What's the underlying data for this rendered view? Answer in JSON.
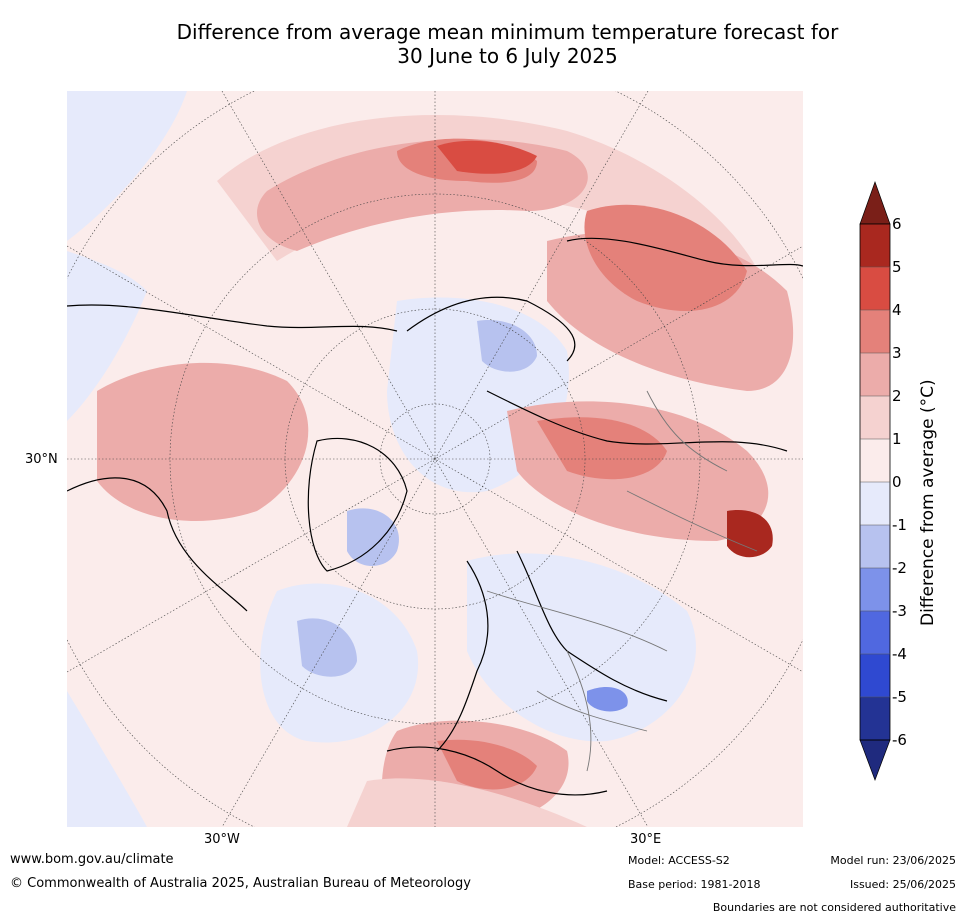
{
  "title_line1": "Difference from average mean minimum temperature forecast for",
  "title_line2": "30 June to 6 July 2025",
  "map": {
    "projection": "north-polar-stereographic",
    "graticule_labels": {
      "lat_left": "30°N",
      "lon_bottom_left": "30°W",
      "lon_bottom_right": "30°E"
    },
    "anomaly_colors": {
      "-6": "#233394",
      "-5": "#2f49d1",
      "-4": "#5068e0",
      "-3": "#7d92ea",
      "-2": "#b7c2ef",
      "-1": "#e6eafb",
      "0": "#fbeceb",
      "1": "#f5d2d0",
      "2": "#ecacaa",
      "3": "#e4817a",
      "4": "#d94c42",
      "5": "#a9281f",
      "6": "#7a1f18"
    }
  },
  "colorbar": {
    "ticks": [
      "6",
      "5",
      "4",
      "3",
      "2",
      "1",
      "0",
      "-1",
      "-2",
      "-3",
      "-4",
      "-5",
      "-6"
    ],
    "label": "Difference from average (°C)"
  },
  "footer": {
    "url": "www.bom.gov.au/climate",
    "copyright": "© Commonwealth of Australia 2025, Australian Bureau of Meteorology",
    "model": "Model: ACCESS-S2",
    "base_period": "Base period: 1981-2018",
    "model_run": "Model run: 23/06/2025",
    "issued": "Issued: 25/06/2025",
    "disclaimer": "Boundaries are not considered authoritative"
  }
}
